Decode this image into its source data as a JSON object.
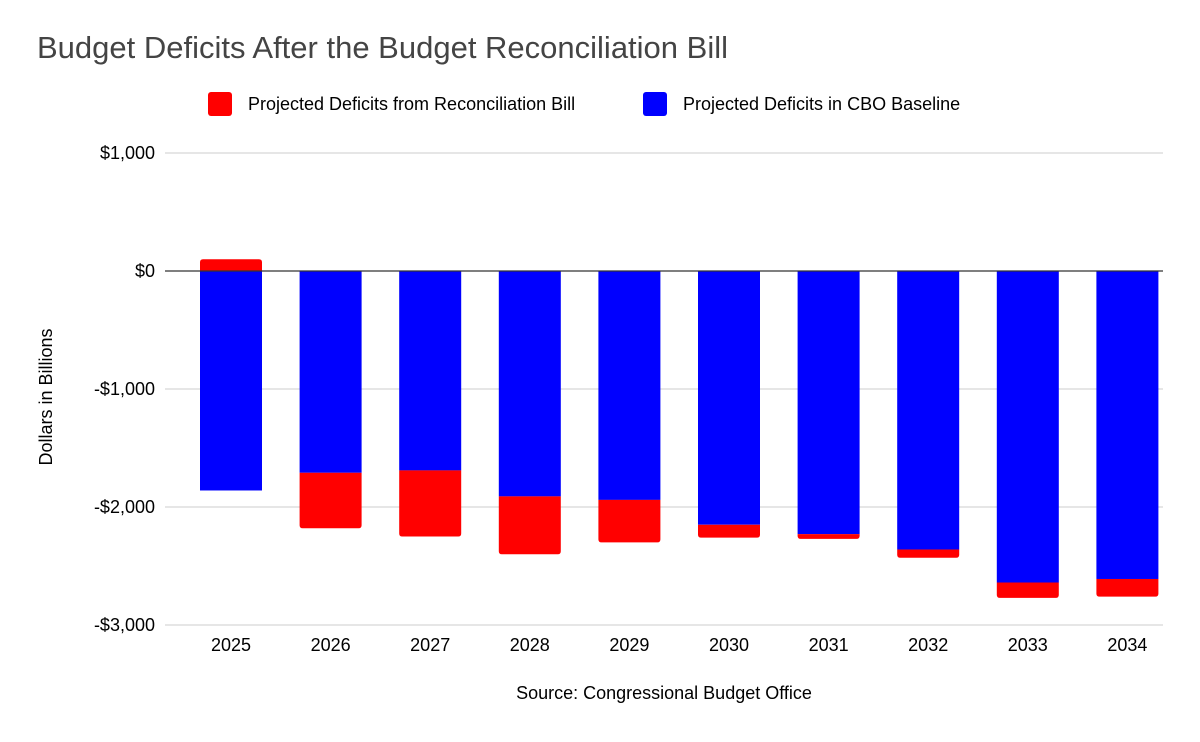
{
  "chart_data": {
    "type": "bar",
    "stacked": true,
    "title": "Budget Deficits After the Budget Reconciliation Bill",
    "xlabel": "",
    "ylabel": "Dollars in Billions",
    "source": "Source: Congressional Budget Office",
    "categories": [
      "2025",
      "2026",
      "2027",
      "2028",
      "2029",
      "2030",
      "2031",
      "2032",
      "2033",
      "2034"
    ],
    "ylim": [
      -3000,
      1000
    ],
    "yticks": [
      1000,
      0,
      -1000,
      -2000,
      -3000
    ],
    "ytick_labels": [
      "$1,000",
      "$0",
      "-$1,000",
      "-$2,000",
      "-$3,000"
    ],
    "grid": true,
    "legend_position": "top",
    "series": [
      {
        "name": "Projected Deficits in CBO Baseline",
        "color": "#0000ff",
        "values": [
          -1860,
          -1710,
          -1690,
          -1910,
          -1940,
          -2150,
          -2230,
          -2360,
          -2640,
          -2610
        ]
      },
      {
        "name": "Projected Deficits from Reconciliation Bill",
        "color": "#ff0000",
        "values": [
          100,
          -470,
          -560,
          -490,
          -360,
          -110,
          -40,
          -70,
          -130,
          -150
        ]
      }
    ],
    "legend": [
      {
        "name": "Projected Deficits from Reconciliation Bill",
        "color": "#ff0000"
      },
      {
        "name": "Projected Deficits in CBO Baseline",
        "color": "#0000ff"
      }
    ]
  }
}
